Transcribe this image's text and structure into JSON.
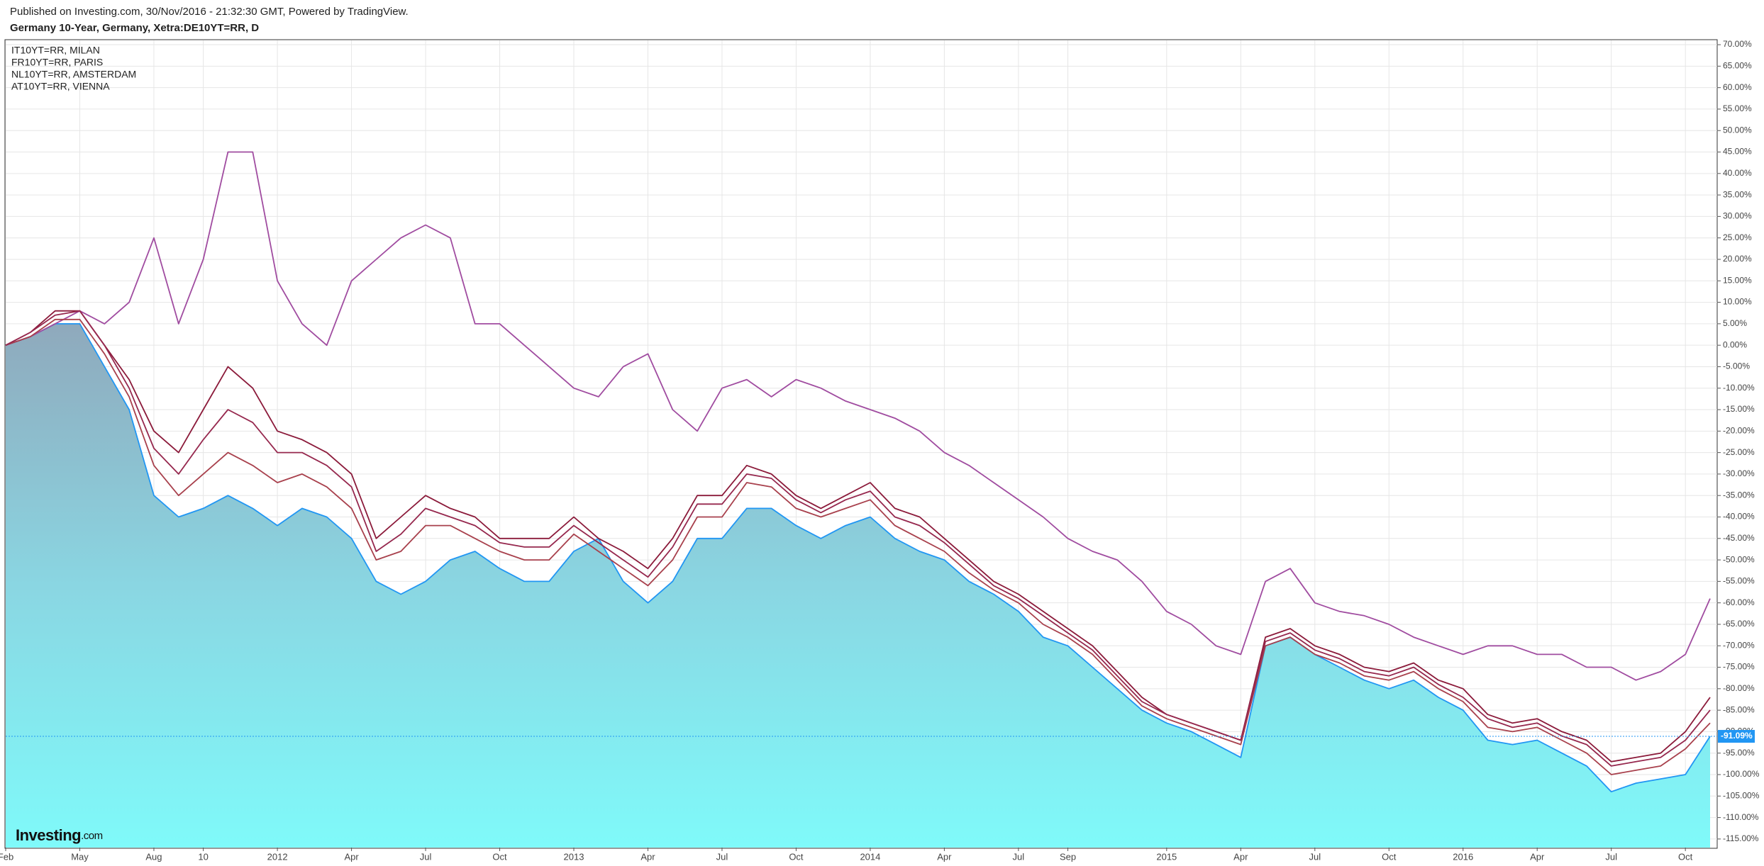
{
  "chart_data": {
    "type": "line",
    "header": "Published on Investing.com, 30/Nov/2016 - 21:32:30 GMT, Powered by TradingView.",
    "title": "Germany 10-Year, Germany, Xetra:DE10YT=RR, D",
    "watermark": "Investing",
    "watermark_suffix": ".com",
    "grid": true,
    "legend": "top-left",
    "categories": [
      "Feb",
      null,
      null,
      "May",
      null,
      null,
      "Aug",
      null,
      "10",
      null,
      null,
      "2012",
      null,
      null,
      "Apr",
      null,
      null,
      "Jul",
      null,
      null,
      "Oct",
      null,
      null,
      "2013",
      null,
      null,
      "Apr",
      null,
      null,
      "Jul",
      null,
      null,
      "Oct",
      null,
      null,
      "2014",
      null,
      null,
      "Apr",
      null,
      null,
      "Jul",
      null,
      "Sep",
      null,
      null,
      null,
      "2015",
      null,
      null,
      "Apr",
      null,
      null,
      "Jul",
      null,
      null,
      "Oct",
      null,
      null,
      "2016",
      null,
      null,
      "Apr",
      null,
      null,
      "Jul",
      null,
      null,
      "Oct",
      null
    ],
    "ylim": [
      -117,
      71
    ],
    "yticks": [
      {
        "value": 70,
        "label": "70.00%"
      },
      {
        "value": 65,
        "label": "65.00%"
      },
      {
        "value": 60,
        "label": "60.00%"
      },
      {
        "value": 55,
        "label": "55.00%"
      },
      {
        "value": 50,
        "label": "50.00%"
      },
      {
        "value": 45,
        "label": "45.00%"
      },
      {
        "value": 40,
        "label": "40.00%"
      },
      {
        "value": 35,
        "label": "35.00%"
      },
      {
        "value": 30,
        "label": "30.00%"
      },
      {
        "value": 25,
        "label": "25.00%"
      },
      {
        "value": 20,
        "label": "20.00%"
      },
      {
        "value": 15,
        "label": "15.00%"
      },
      {
        "value": 10,
        "label": "10.00%"
      },
      {
        "value": 5,
        "label": "5.00%"
      },
      {
        "value": 0,
        "label": "0.00%"
      },
      {
        "value": -5,
        "label": "-5.00%"
      },
      {
        "value": -10,
        "label": "-10.00%"
      },
      {
        "value": -15,
        "label": "-15.00%"
      },
      {
        "value": -20,
        "label": "-20.00%"
      },
      {
        "value": -25,
        "label": "-25.00%"
      },
      {
        "value": -30,
        "label": "-30.00%"
      },
      {
        "value": -35,
        "label": "-35.00%"
      },
      {
        "value": -40,
        "label": "-40.00%"
      },
      {
        "value": -45,
        "label": "-45.00%"
      },
      {
        "value": -50,
        "label": "-50.00%"
      },
      {
        "value": -55,
        "label": "-55.00%"
      },
      {
        "value": -60,
        "label": "-60.00%"
      },
      {
        "value": -65,
        "label": "-65.00%"
      },
      {
        "value": -70,
        "label": "-70.00%"
      },
      {
        "value": -75,
        "label": "-75.00%"
      },
      {
        "value": -80,
        "label": "-80.00%"
      },
      {
        "value": -85,
        "label": "-85.00%"
      },
      {
        "value": -90,
        "label": "-90.00%"
      },
      {
        "value": -95,
        "label": "-95.00%"
      },
      {
        "value": -100,
        "label": "-100.00%"
      },
      {
        "value": -105,
        "label": "-105.00%"
      },
      {
        "value": -110,
        "label": "-110.00%"
      },
      {
        "value": -115,
        "label": "-115.00%"
      }
    ],
    "price_line": {
      "value": -91.09,
      "label": "-91.09%"
    },
    "series": [
      {
        "color": "#2196f3",
        "area": true,
        "values": [
          0,
          2,
          5,
          5,
          -5,
          -15,
          -35,
          -40,
          -38,
          -35,
          -38,
          -42,
          -38,
          -40,
          -45,
          -55,
          -58,
          -55,
          -50,
          -48,
          -52,
          -55,
          -55,
          -48,
          -45,
          -55,
          -60,
          -55,
          -45,
          -45,
          -38,
          -38,
          -42,
          -45,
          -42,
          -40,
          -45,
          -48,
          -50,
          -55,
          -58,
          -62,
          -68,
          -70,
          -75,
          -80,
          -85,
          -88,
          -90,
          -93,
          -96,
          -70,
          -68,
          -72,
          -75,
          -78,
          -80,
          -78,
          -82,
          -85,
          -92,
          -93,
          -92,
          -95,
          -98,
          -104,
          -102,
          -101,
          -100,
          -91.09
        ]
      },
      {
        "name": "IT10YT=RR, MILAN",
        "color": "#a04ca0",
        "values": [
          0,
          2,
          5,
          8,
          5,
          10,
          25,
          5,
          20,
          45,
          45,
          15,
          5,
          0,
          15,
          20,
          25,
          28,
          25,
          5,
          5,
          0,
          -5,
          -10,
          -12,
          -5,
          -2,
          -15,
          -20,
          -10,
          -8,
          -12,
          -8,
          -10,
          -13,
          -15,
          -17,
          -20,
          -25,
          -28,
          -32,
          -36,
          -40,
          -45,
          -48,
          -50,
          -55,
          -62,
          -65,
          -70,
          -72,
          -55,
          -52,
          -60,
          -62,
          -63,
          -65,
          -68,
          -70,
          -72,
          -70,
          -70,
          -72,
          -72,
          -75,
          -75,
          -78,
          -76,
          -72,
          -59
        ]
      },
      {
        "name": "FR10YT=RR, PARIS",
        "color": "#8b1a3a",
        "values": [
          0,
          3,
          8,
          8,
          0,
          -8,
          -20,
          -25,
          -15,
          -5,
          -10,
          -20,
          -22,
          -25,
          -30,
          -45,
          -40,
          -35,
          -38,
          -40,
          -45,
          -45,
          -45,
          -40,
          -45,
          -48,
          -52,
          -45,
          -35,
          -35,
          -28,
          -30,
          -35,
          -38,
          -35,
          -32,
          -38,
          -40,
          -45,
          -50,
          -55,
          -58,
          -62,
          -66,
          -70,
          -76,
          -82,
          -86,
          -88,
          -90,
          -92,
          -68,
          -66,
          -70,
          -72,
          -75,
          -76,
          -74,
          -78,
          -80,
          -86,
          -88,
          -87,
          -90,
          -92,
          -97,
          -96,
          -95,
          -90,
          -82
        ]
      },
      {
        "name": "NL10YT=RR, AMSTERDAM",
        "color": "#a8404c",
        "values": [
          0,
          2,
          6,
          6,
          -2,
          -12,
          -28,
          -35,
          -30,
          -25,
          -28,
          -32,
          -30,
          -33,
          -38,
          -50,
          -48,
          -42,
          -42,
          -45,
          -48,
          -50,
          -50,
          -44,
          -48,
          -52,
          -56,
          -50,
          -40,
          -40,
          -32,
          -33,
          -38,
          -40,
          -38,
          -36,
          -42,
          -45,
          -48,
          -53,
          -57,
          -60,
          -65,
          -68,
          -72,
          -78,
          -84,
          -87,
          -89,
          -91,
          -93,
          -70,
          -68,
          -72,
          -74,
          -77,
          -78,
          -76,
          -80,
          -83,
          -89,
          -90,
          -89,
          -92,
          -95,
          -100,
          -99,
          -98,
          -94,
          -88
        ]
      },
      {
        "name": "AT10YT=RR, VIENNA",
        "color": "#96284e",
        "values": [
          0,
          3,
          7,
          8,
          0,
          -10,
          -24,
          -30,
          -22,
          -15,
          -18,
          -25,
          -25,
          -28,
          -33,
          -48,
          -44,
          -38,
          -40,
          -42,
          -46,
          -47,
          -47,
          -42,
          -46,
          -50,
          -54,
          -47,
          -37,
          -37,
          -30,
          -31,
          -36,
          -39,
          -36,
          -34,
          -40,
          -42,
          -46,
          -51,
          -56,
          -59,
          -63,
          -67,
          -71,
          -77,
          -83,
          -86,
          -88,
          -90,
          -92,
          -69,
          -67,
          -71,
          -73,
          -76,
          -77,
          -75,
          -79,
          -82,
          -87,
          -89,
          -88,
          -91,
          -93,
          -98,
          -97,
          -96,
          -92,
          -85
        ]
      }
    ]
  }
}
